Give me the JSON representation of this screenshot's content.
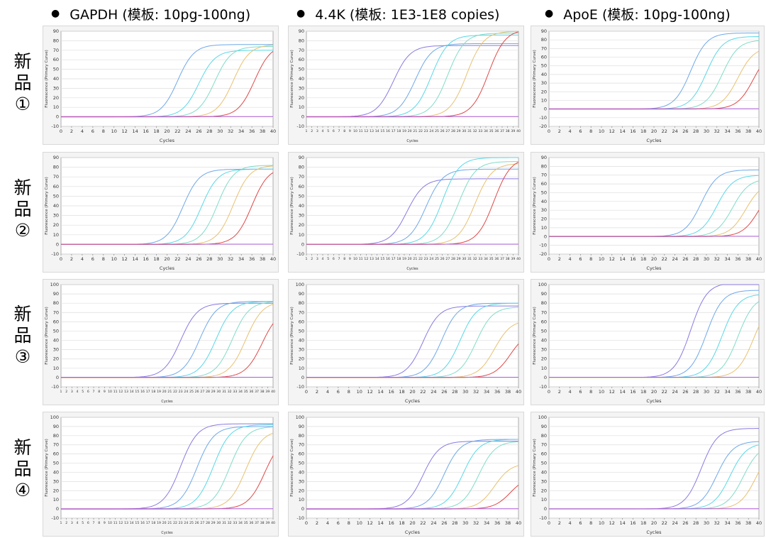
{
  "header": {
    "bullet": "●",
    "columns": [
      "GAPDH (模板: 10pg-100ng)",
      "4.4K (模板: 1E3-1E8 copies)",
      "ApoE (模板: 10pg-100ng)"
    ]
  },
  "rows": [
    {
      "chars": [
        "新",
        "品",
        "①"
      ]
    },
    {
      "chars": [
        "新",
        "品",
        "②"
      ]
    },
    {
      "chars": [
        "新",
        "品",
        "③"
      ]
    },
    {
      "chars": [
        "新",
        "品",
        "④"
      ]
    }
  ],
  "colors": {
    "purple": "#8a7ae0",
    "blue": "#6ea8e8",
    "cyan": "#58d8e8",
    "teal": "#80dcc8",
    "yellow": "#e8c070",
    "red": "#e04848",
    "flat": "#b060d8"
  },
  "chart_data": [
    {
      "type": "line",
      "xlabel": "Cycles",
      "ylabel": "Fluorescence (Primary Curve)",
      "xlim": [
        0,
        40
      ],
      "ylim": [
        -10,
        90
      ],
      "xticks": [
        0,
        2,
        4,
        6,
        8,
        10,
        12,
        14,
        16,
        18,
        20,
        22,
        24,
        26,
        28,
        30,
        32,
        34,
        36,
        38,
        40
      ],
      "yticks": [
        -10,
        0,
        10,
        20,
        30,
        40,
        50,
        60,
        70,
        80,
        90
      ],
      "series": [
        {
          "color": "#6ea8e8",
          "ct": 22,
          "plateau": 76
        },
        {
          "color": "#58d8e8",
          "ct": 26,
          "plateau": 70
        },
        {
          "color": "#80dcc8",
          "ct": 29,
          "plateau": 74
        },
        {
          "color": "#e8c070",
          "ct": 32.5,
          "plateau": 76
        },
        {
          "color": "#e04848",
          "ct": 36.5,
          "plateau": 76
        },
        {
          "color": "#b060d8",
          "ct": null,
          "plateau": 0
        }
      ]
    },
    {
      "type": "line",
      "xlabel": "Cycles",
      "ylabel": "Fluorescence (Primary Curve)",
      "xlim": [
        1,
        40
      ],
      "ylim": [
        -10,
        90
      ],
      "xticks": [
        1,
        2,
        3,
        4,
        5,
        6,
        7,
        8,
        9,
        10,
        11,
        12,
        13,
        14,
        15,
        16,
        17,
        18,
        19,
        20,
        21,
        22,
        23,
        24,
        25,
        26,
        27,
        28,
        29,
        30,
        31,
        32,
        33,
        34,
        35,
        36,
        37,
        38,
        39,
        40
      ],
      "yticks": [
        -10,
        0,
        10,
        20,
        30,
        40,
        50,
        60,
        70,
        80,
        90
      ],
      "series": [
        {
          "color": "#8a7ae0",
          "ct": 17,
          "plateau": 75
        },
        {
          "color": "#6ea8e8",
          "ct": 21,
          "plateau": 77
        },
        {
          "color": "#58d8e8",
          "ct": 24,
          "plateau": 86
        },
        {
          "color": "#80dcc8",
          "ct": 27,
          "plateau": 88
        },
        {
          "color": "#e8c070",
          "ct": 30.5,
          "plateau": 90
        },
        {
          "color": "#e04848",
          "ct": 34.5,
          "plateau": 92
        },
        {
          "color": "#b060d8",
          "ct": null,
          "plateau": 0
        }
      ]
    },
    {
      "type": "line",
      "xlabel": "Cycles",
      "ylabel": "Fluorescence (Primary Curve)",
      "xlim": [
        0,
        40
      ],
      "ylim": [
        -20,
        90
      ],
      "xticks": [
        0,
        2,
        4,
        6,
        8,
        10,
        12,
        14,
        16,
        18,
        20,
        22,
        24,
        26,
        28,
        30,
        32,
        34,
        36,
        38,
        40
      ],
      "yticks": [
        -20,
        -10,
        0,
        10,
        20,
        30,
        40,
        50,
        60,
        70,
        80,
        90
      ],
      "series": [
        {
          "color": "#6ea8e8",
          "ct": 27,
          "plateau": 88
        },
        {
          "color": "#58d8e8",
          "ct": 30,
          "plateau": 84
        },
        {
          "color": "#80dcc8",
          "ct": 33,
          "plateau": 80
        },
        {
          "color": "#e8c070",
          "ct": 36,
          "plateau": 72
        },
        {
          "color": "#e04848",
          "ct": 39,
          "plateau": 70
        },
        {
          "color": "#b060d8",
          "ct": null,
          "plateau": 0
        }
      ]
    },
    {
      "type": "line",
      "xlabel": "Cycles",
      "ylabel": "Fluorescence (Primary Curve)",
      "xlim": [
        0,
        40
      ],
      "ylim": [
        -10,
        90
      ],
      "xticks": [
        0,
        2,
        4,
        6,
        8,
        10,
        12,
        14,
        16,
        18,
        20,
        22,
        24,
        26,
        28,
        30,
        32,
        34,
        36,
        38,
        40
      ],
      "yticks": [
        -10,
        0,
        10,
        20,
        30,
        40,
        50,
        60,
        70,
        80,
        90
      ],
      "series": [
        {
          "color": "#6ea8e8",
          "ct": 23,
          "plateau": 78
        },
        {
          "color": "#58d8e8",
          "ct": 26.5,
          "plateau": 78
        },
        {
          "color": "#80dcc8",
          "ct": 29.5,
          "plateau": 82
        },
        {
          "color": "#e8c070",
          "ct": 32.5,
          "plateau": 82
        },
        {
          "color": "#e04848",
          "ct": 36,
          "plateau": 80
        },
        {
          "color": "#b060d8",
          "ct": null,
          "plateau": 0
        }
      ]
    },
    {
      "type": "line",
      "xlabel": "Cycles",
      "ylabel": "Fluorescence (Primary Curve)",
      "xlim": [
        1,
        40
      ],
      "ylim": [
        -10,
        90
      ],
      "xticks": [
        1,
        2,
        3,
        4,
        5,
        6,
        7,
        8,
        9,
        10,
        11,
        12,
        13,
        14,
        15,
        16,
        17,
        18,
        19,
        20,
        21,
        22,
        23,
        24,
        25,
        26,
        27,
        28,
        29,
        30,
        31,
        32,
        33,
        34,
        35,
        36,
        37,
        38,
        39,
        40
      ],
      "yticks": [
        -10,
        0,
        10,
        20,
        30,
        40,
        50,
        60,
        70,
        80,
        90
      ],
      "series": [
        {
          "color": "#8a7ae0",
          "ct": 19.5,
          "plateau": 68
        },
        {
          "color": "#6ea8e8",
          "ct": 23,
          "plateau": 78
        },
        {
          "color": "#58d8e8",
          "ct": 26,
          "plateau": 90
        },
        {
          "color": "#80dcc8",
          "ct": 29,
          "plateau": 86
        },
        {
          "color": "#e8c070",
          "ct": 32,
          "plateau": 84
        },
        {
          "color": "#e04848",
          "ct": 35.5,
          "plateau": 90
        },
        {
          "color": "#b060d8",
          "ct": null,
          "plateau": 0
        }
      ]
    },
    {
      "type": "line",
      "xlabel": "Cycles",
      "ylabel": "Fluorescence (Primary Curve)",
      "xlim": [
        0,
        40
      ],
      "ylim": [
        -20,
        90
      ],
      "xticks": [
        0,
        2,
        4,
        6,
        8,
        10,
        12,
        14,
        16,
        18,
        20,
        22,
        24,
        26,
        28,
        30,
        32,
        34,
        36,
        38,
        40
      ],
      "yticks": [
        -20,
        -10,
        0,
        10,
        20,
        30,
        40,
        50,
        60,
        70,
        80,
        90
      ],
      "series": [
        {
          "color": "#6ea8e8",
          "ct": 29,
          "plateau": 76
        },
        {
          "color": "#58d8e8",
          "ct": 32,
          "plateau": 70
        },
        {
          "color": "#80dcc8",
          "ct": 35,
          "plateau": 66
        },
        {
          "color": "#e8c070",
          "ct": 37.5,
          "plateau": 62
        },
        {
          "color": "#e04848",
          "ct": 40,
          "plateau": 60
        },
        {
          "color": "#b060d8",
          "ct": null,
          "plateau": 0
        }
      ]
    },
    {
      "type": "line",
      "xlabel": "Cycles",
      "ylabel": "Fluorescence (Primary Curve)",
      "xlim": [
        1,
        40
      ],
      "ylim": [
        -10,
        100
      ],
      "xticks": [
        1,
        2,
        3,
        4,
        5,
        6,
        7,
        8,
        9,
        10,
        11,
        12,
        13,
        14,
        15,
        16,
        17,
        18,
        19,
        20,
        21,
        22,
        23,
        24,
        25,
        26,
        27,
        28,
        29,
        30,
        31,
        32,
        33,
        34,
        35,
        36,
        37,
        38,
        39,
        40
      ],
      "yticks": [
        -10,
        0,
        10,
        20,
        30,
        40,
        50,
        60,
        70,
        80,
        90,
        100
      ],
      "series": [
        {
          "color": "#8a7ae0",
          "ct": 23,
          "plateau": 80
        },
        {
          "color": "#6ea8e8",
          "ct": 26.5,
          "plateau": 82
        },
        {
          "color": "#58d8e8",
          "ct": 29.5,
          "plateau": 82
        },
        {
          "color": "#80dcc8",
          "ct": 32.5,
          "plateau": 82
        },
        {
          "color": "#e8c070",
          "ct": 35,
          "plateau": 82
        },
        {
          "color": "#e04848",
          "ct": 38,
          "plateau": 74
        },
        {
          "color": "#b060d8",
          "ct": null,
          "plateau": 0
        }
      ]
    },
    {
      "type": "line",
      "xlabel": "Cycles",
      "ylabel": "Fluorescence (Primary Curve)",
      "xlim": [
        0,
        40
      ],
      "ylim": [
        -10,
        100
      ],
      "xticks": [
        0,
        2,
        4,
        6,
        8,
        10,
        12,
        14,
        16,
        18,
        20,
        22,
        24,
        26,
        28,
        30,
        32,
        34,
        36,
        38,
        40
      ],
      "yticks": [
        -10,
        0,
        10,
        20,
        30,
        40,
        50,
        60,
        70,
        80,
        90,
        100
      ],
      "series": [
        {
          "color": "#8a7ae0",
          "ct": 22,
          "plateau": 77
        },
        {
          "color": "#6ea8e8",
          "ct": 25.5,
          "plateau": 80
        },
        {
          "color": "#58d8e8",
          "ct": 29,
          "plateau": 80
        },
        {
          "color": "#80dcc8",
          "ct": 32,
          "plateau": 76
        },
        {
          "color": "#e8c070",
          "ct": 35.5,
          "plateau": 62
        },
        {
          "color": "#e04848",
          "ct": 38.5,
          "plateau": 50
        },
        {
          "color": "#b060d8",
          "ct": null,
          "plateau": 0
        }
      ]
    },
    {
      "type": "line",
      "xlabel": "Cycles",
      "ylabel": "Fluorescence (Primary Curve)",
      "xlim": [
        0,
        40
      ],
      "ylim": [
        -10,
        100
      ],
      "xticks": [
        0,
        2,
        4,
        6,
        8,
        10,
        12,
        14,
        16,
        18,
        20,
        22,
        24,
        26,
        28,
        30,
        32,
        34,
        36,
        38,
        40
      ],
      "yticks": [
        -10,
        0,
        10,
        20,
        30,
        40,
        50,
        60,
        70,
        80,
        90,
        100
      ],
      "series": [
        {
          "color": "#8a7ae0",
          "ct": 27,
          "plateau": 102
        },
        {
          "color": "#6ea8e8",
          "ct": 30,
          "plateau": 94
        },
        {
          "color": "#58d8e8",
          "ct": 33,
          "plateau": 90
        },
        {
          "color": "#80dcc8",
          "ct": 36,
          "plateau": 88
        },
        {
          "color": "#e8c070",
          "ct": 39,
          "plateau": 84
        },
        {
          "color": "#b060d8",
          "ct": null,
          "plateau": 0
        }
      ]
    },
    {
      "type": "line",
      "xlabel": "Cycles",
      "ylabel": "Fluorescence (Primary Curve)",
      "xlim": [
        1,
        40
      ],
      "ylim": [
        -10,
        100
      ],
      "xticks": [
        1,
        2,
        3,
        4,
        5,
        6,
        7,
        8,
        9,
        10,
        11,
        12,
        13,
        14,
        15,
        16,
        17,
        18,
        19,
        20,
        21,
        22,
        23,
        24,
        25,
        26,
        27,
        28,
        29,
        30,
        31,
        32,
        33,
        34,
        35,
        36,
        37,
        38,
        39,
        40
      ],
      "yticks": [
        -10,
        0,
        10,
        20,
        30,
        40,
        50,
        60,
        70,
        80,
        90,
        100
      ],
      "series": [
        {
          "color": "#8a7ae0",
          "ct": 23,
          "plateau": 93
        },
        {
          "color": "#6ea8e8",
          "ct": 26,
          "plateau": 90
        },
        {
          "color": "#58d8e8",
          "ct": 29,
          "plateau": 92
        },
        {
          "color": "#80dcc8",
          "ct": 32,
          "plateau": 90
        },
        {
          "color": "#e8c070",
          "ct": 35,
          "plateau": 86
        },
        {
          "color": "#e04848",
          "ct": 38.5,
          "plateau": 80
        },
        {
          "color": "#b060d8",
          "ct": null,
          "plateau": 0
        }
      ]
    },
    {
      "type": "line",
      "xlabel": "Cycles",
      "ylabel": "Fluorescence (Primary Curve)",
      "xlim": [
        0,
        40
      ],
      "ylim": [
        -10,
        100
      ],
      "xticks": [
        0,
        2,
        4,
        6,
        8,
        10,
        12,
        14,
        16,
        18,
        20,
        22,
        24,
        26,
        28,
        30,
        32,
        34,
        36,
        38,
        40
      ],
      "yticks": [
        -10,
        0,
        10,
        20,
        30,
        40,
        50,
        60,
        70,
        80,
        90,
        100
      ],
      "series": [
        {
          "color": "#8a7ae0",
          "ct": 22,
          "plateau": 74
        },
        {
          "color": "#6ea8e8",
          "ct": 26,
          "plateau": 76
        },
        {
          "color": "#58d8e8",
          "ct": 29.5,
          "plateau": 76
        },
        {
          "color": "#80dcc8",
          "ct": 32.5,
          "plateau": 74
        },
        {
          "color": "#e8c070",
          "ct": 35.5,
          "plateau": 50
        },
        {
          "color": "#e04848",
          "ct": 38.5,
          "plateau": 36
        },
        {
          "color": "#b060d8",
          "ct": null,
          "plateau": 0
        }
      ]
    },
    {
      "type": "line",
      "xlabel": "Cycles",
      "ylabel": "Fluorescence (Primary Curve)",
      "xlim": [
        0,
        40
      ],
      "ylim": [
        -10,
        100
      ],
      "xticks": [
        0,
        2,
        4,
        6,
        8,
        10,
        12,
        14,
        16,
        18,
        20,
        22,
        24,
        26,
        28,
        30,
        32,
        34,
        36,
        38,
        40
      ],
      "yticks": [
        -10,
        0,
        10,
        20,
        30,
        40,
        50,
        60,
        70,
        80,
        90,
        100
      ],
      "series": [
        {
          "color": "#8a7ae0",
          "ct": 29,
          "plateau": 88
        },
        {
          "color": "#6ea8e8",
          "ct": 32,
          "plateau": 74
        },
        {
          "color": "#58d8e8",
          "ct": 34.5,
          "plateau": 72
        },
        {
          "color": "#80dcc8",
          "ct": 37,
          "plateau": 70
        },
        {
          "color": "#e8c070",
          "ct": 39.5,
          "plateau": 70
        },
        {
          "color": "#b060d8",
          "ct": null,
          "plateau": 0
        }
      ]
    }
  ]
}
